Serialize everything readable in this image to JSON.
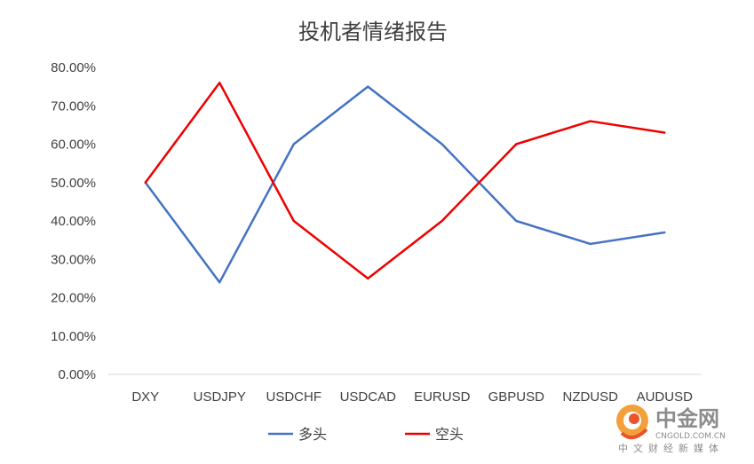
{
  "chart_data": {
    "type": "line",
    "title": "投机者情绪报告",
    "categories": [
      "DXY",
      "USDJPY",
      "USDCHF",
      "USDCAD",
      "EURUSD",
      "GBPUSD",
      "NZDUSD",
      "AUDUSD"
    ],
    "series": [
      {
        "name": "多头",
        "color": "#4472c4",
        "values": [
          0.5,
          0.24,
          0.6,
          0.75,
          0.6,
          0.4,
          0.34,
          0.37
        ]
      },
      {
        "name": "空头",
        "color": "#ee0000",
        "values": [
          0.5,
          0.76,
          0.4,
          0.25,
          0.4,
          0.6,
          0.66,
          0.63
        ]
      }
    ],
    "yticks": [
      "0.00%",
      "10.00%",
      "20.00%",
      "30.00%",
      "40.00%",
      "50.00%",
      "60.00%",
      "70.00%",
      "80.00%"
    ],
    "ylim": [
      0,
      0.8
    ],
    "grid": false,
    "legend": "bottom"
  },
  "watermark": {
    "name": "中金网",
    "url": "CNGOLD.COM.CN",
    "sub": "中文财经新媒体",
    "icon": "cngold-logo-icon"
  }
}
